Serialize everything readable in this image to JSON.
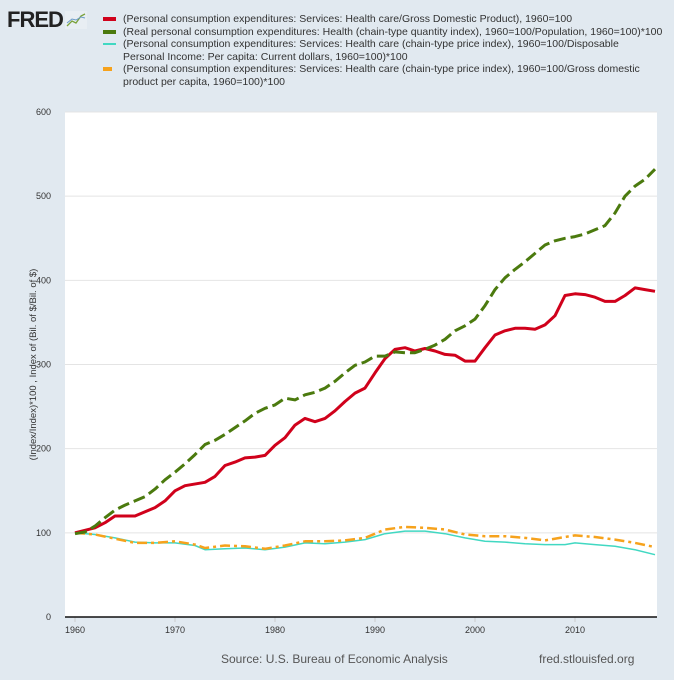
{
  "logo": {
    "text": "FRED"
  },
  "footer": {
    "source": "Source: U.S. Bureau of Economic Analysis",
    "site": "fred.stlouisfed.org"
  },
  "chart_data": {
    "type": "line",
    "ylabel": "(Index/Index)*100 , Index of (Bil. of $/Bil. of $)",
    "xlim": [
      1959,
      2018.2
    ],
    "ylim": [
      0,
      600
    ],
    "yticks": [
      0,
      100,
      200,
      300,
      400,
      500,
      600
    ],
    "xticks": [
      1960,
      1970,
      1980,
      1990,
      2000,
      2010
    ],
    "grid": true,
    "legend_position": "top",
    "series": [
      {
        "name": "(Personal consumption expenditures: Services: Health care/Gross Domestic Product), 1960=100",
        "color": "#d0011b",
        "dash": "solid",
        "x": [
          1960,
          1962,
          1963,
          1964,
          1966,
          1968,
          1969,
          1970,
          1971,
          1973,
          1974,
          1975,
          1976,
          1977,
          1978,
          1979,
          1980,
          1981,
          1982,
          1983,
          1984,
          1985,
          1986,
          1987,
          1988,
          1989,
          1990,
          1991,
          1992,
          1993,
          1994,
          1995,
          1996,
          1997,
          1998,
          1999,
          2000,
          2001,
          2002,
          2003,
          2004,
          2005,
          2006,
          2007,
          2008,
          2009,
          2010,
          2011,
          2012,
          2013,
          2014,
          2015,
          2016,
          2017,
          2018
        ],
        "y": [
          100,
          106,
          112,
          120,
          120,
          130,
          138,
          150,
          156,
          160,
          167,
          180,
          184,
          189,
          190,
          192,
          204,
          213,
          228,
          236,
          232,
          236,
          245,
          256,
          266,
          272,
          290,
          307,
          318,
          320,
          316,
          319,
          316,
          312,
          311,
          304,
          304,
          320,
          335,
          340,
          343,
          343,
          342,
          347,
          358,
          382,
          384,
          383,
          380,
          375,
          375,
          382,
          391,
          389,
          387
        ]
      },
      {
        "name": "(Real personal consumption expenditures: Health (chain-type quantity index), 1960=100/Population, 1960=100)*100",
        "color": "#4b7a0e",
        "dash": "long",
        "x": [
          1960,
          1961,
          1962,
          1963,
          1964,
          1965,
          1966,
          1967,
          1968,
          1969,
          1970,
          1971,
          1972,
          1973,
          1974,
          1975,
          1976,
          1977,
          1978,
          1979,
          1980,
          1981,
          1982,
          1983,
          1984,
          1985,
          1986,
          1987,
          1988,
          1989,
          1990,
          1991,
          1992,
          1993,
          1994,
          1995,
          1996,
          1997,
          1998,
          1999,
          2000,
          2001,
          2002,
          2003,
          2004,
          2005,
          2006,
          2007,
          2008,
          2009,
          2010,
          2011,
          2012,
          2013,
          2014,
          2015,
          2016,
          2017,
          2018
        ],
        "y": [
          99,
          101,
          108,
          118,
          127,
          133,
          138,
          143,
          152,
          163,
          172,
          182,
          193,
          205,
          210,
          217,
          225,
          233,
          242,
          248,
          252,
          260,
          258,
          264,
          267,
          272,
          280,
          290,
          299,
          303,
          310,
          310,
          315,
          314,
          314,
          318,
          323,
          330,
          340,
          346,
          354,
          370,
          389,
          403,
          413,
          422,
          432,
          442,
          447,
          450,
          452,
          455,
          460,
          465,
          480,
          500,
          512,
          520,
          532
        ]
      },
      {
        "name": "(Personal consumption expenditures: Services: Health care (chain-type price index), 1960=100/Disposable Personal Income: Per capita: Current dollars, 1960=100)*100",
        "color": "#41d8c2",
        "dash": "solid",
        "x": [
          1960,
          1962,
          1964,
          1966,
          1968,
          1970,
          1972,
          1973,
          1975,
          1977,
          1979,
          1981,
          1983,
          1985,
          1987,
          1989,
          1991,
          1993,
          1995,
          1997,
          1999,
          2001,
          2003,
          2005,
          2007,
          2009,
          2010,
          2012,
          2014,
          2016,
          2018
        ],
        "y": [
          100,
          98,
          94,
          89,
          88,
          88,
          85,
          80,
          81,
          82,
          80,
          83,
          88,
          87,
          89,
          92,
          99,
          102,
          102,
          99,
          94,
          90,
          89,
          87,
          86,
          86,
          88,
          86,
          84,
          80,
          74
        ]
      },
      {
        "name": "(Personal consumption expenditures: Services: Health care (chain-type price index), 1960=100/Gross domestic product per capita, 1960=100)*100",
        "color": "#f6a21c",
        "dash": "dashdot",
        "x": [
          1960,
          1962,
          1964,
          1966,
          1968,
          1970,
          1972,
          1973,
          1975,
          1977,
          1979,
          1981,
          1983,
          1985,
          1987,
          1989,
          1991,
          1993,
          1995,
          1997,
          1999,
          2001,
          2003,
          2005,
          2007,
          2009,
          2010,
          2012,
          2014,
          2016,
          2018
        ],
        "y": [
          100,
          98,
          93,
          88,
          88,
          90,
          86,
          82,
          85,
          84,
          81,
          85,
          90,
          90,
          91,
          94,
          104,
          107,
          106,
          104,
          98,
          96,
          96,
          94,
          91,
          95,
          97,
          95,
          92,
          88,
          83
        ]
      }
    ]
  }
}
